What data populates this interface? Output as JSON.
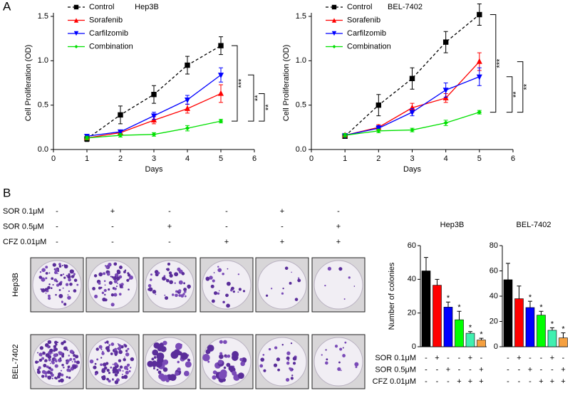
{
  "panel_labels": [
    "A",
    "B"
  ],
  "chart_data": [
    {
      "type": "line",
      "title": "Hep3B",
      "x_label": "Days",
      "y_label": "Cell Proliferation (OD)",
      "x": [
        1,
        2,
        3,
        4,
        5
      ],
      "xlim": [
        0,
        6
      ],
      "xticks": [
        0,
        1,
        2,
        3,
        4,
        5,
        6
      ],
      "ylim": [
        0,
        1.5
      ],
      "yticks": [
        {
          "value": 0,
          "label": "0.0"
        },
        0.5,
        {
          "value": 1,
          "label": "1.0"
        },
        1.5
      ],
      "legend": "upper left",
      "series": [
        {
          "name": "Control",
          "color": "#000000",
          "marker": "square",
          "dashed": true,
          "values": [
            0.12,
            0.39,
            0.62,
            0.95,
            1.17
          ],
          "errors": [
            0.03,
            0.1,
            0.1,
            0.1,
            0.1
          ]
        },
        {
          "name": "Sorafenib",
          "color": "#ff0000",
          "marker": "triangle-up",
          "dashed": false,
          "values": [
            0.13,
            0.19,
            0.33,
            0.46,
            0.63
          ],
          "errors": [
            0.02,
            0.03,
            0.04,
            0.05,
            0.1
          ]
        },
        {
          "name": "Carfilzomib",
          "color": "#0000ff",
          "marker": "triangle-down",
          "dashed": false,
          "values": [
            0.15,
            0.2,
            0.38,
            0.56,
            0.84
          ],
          "errors": [
            0.02,
            0.02,
            0.04,
            0.05,
            0.08
          ]
        },
        {
          "name": "Combination",
          "color": "#00e000",
          "marker": "diamond",
          "dashed": false,
          "values": [
            0.13,
            0.16,
            0.17,
            0.24,
            0.32
          ],
          "errors": [
            0.02,
            0.02,
            0.02,
            0.03,
            0.02
          ]
        }
      ],
      "annotations": [
        "***",
        "**",
        "**"
      ]
    },
    {
      "type": "line",
      "title": "BEL-7402",
      "x_label": "Days",
      "y_label": "Cell Proliferation (OD)",
      "x": [
        1,
        2,
        3,
        4,
        5
      ],
      "xlim": [
        0,
        6
      ],
      "xticks": [
        0,
        1,
        2,
        3,
        4,
        5,
        6
      ],
      "ylim": [
        0,
        1.5
      ],
      "yticks": [
        {
          "value": 0,
          "label": "0.0"
        },
        0.5,
        {
          "value": 1,
          "label": "1.0"
        },
        1.5
      ],
      "legend": "upper left",
      "series": [
        {
          "name": "Control",
          "color": "#000000",
          "marker": "square",
          "dashed": true,
          "values": [
            0.15,
            0.5,
            0.8,
            1.21,
            1.52
          ],
          "errors": [
            0.02,
            0.12,
            0.12,
            0.12,
            0.12
          ]
        },
        {
          "name": "Sorafenib",
          "color": "#ff0000",
          "marker": "triangle-up",
          "dashed": false,
          "values": [
            0.16,
            0.25,
            0.47,
            0.58,
            0.99
          ],
          "errors": [
            0.02,
            0.03,
            0.05,
            0.05,
            0.1
          ]
        },
        {
          "name": "Carfilzomib",
          "color": "#0000ff",
          "marker": "triangle-down",
          "dashed": false,
          "values": [
            0.16,
            0.24,
            0.42,
            0.67,
            0.82
          ],
          "errors": [
            0.02,
            0.03,
            0.04,
            0.08,
            0.1
          ]
        },
        {
          "name": "Combination",
          "color": "#00e000",
          "marker": "diamond",
          "dashed": false,
          "values": [
            0.16,
            0.21,
            0.22,
            0.3,
            0.42
          ],
          "errors": [
            0.02,
            0.02,
            0.02,
            0.03,
            0.02
          ]
        }
      ],
      "annotations": [
        "***",
        "**",
        "**"
      ]
    },
    {
      "type": "bar",
      "title": "Hep3B",
      "y_label": "Number of colonies",
      "categories": [
        null,
        null,
        null,
        null,
        null,
        null
      ],
      "values": [
        45,
        36.5,
        23.5,
        16,
        8,
        4
      ],
      "errors": [
        8,
        3.5,
        3,
        5,
        1,
        1
      ],
      "colors": [
        "#000000",
        "#ff0000",
        "#0000ff",
        "#00ff00",
        "#40f0b0",
        "#f5a040"
      ],
      "ylim": [
        0,
        60
      ],
      "yticks": [
        0,
        20,
        40,
        60
      ],
      "significance": [
        null,
        null,
        "*",
        "*",
        "*",
        "*"
      ],
      "treatment_labels": [
        "SOR 0.1μM",
        "SOR 0.5μM",
        "CFZ 0.01μM"
      ],
      "treatment_signs": [
        [
          "-",
          "+",
          "-",
          "-",
          "+",
          "-"
        ],
        [
          "-",
          "-",
          "+",
          "-",
          "-",
          "+"
        ],
        [
          "-",
          "-",
          "-",
          "+",
          "+",
          "+"
        ]
      ]
    },
    {
      "type": "bar",
      "title": "BEL-7402",
      "categories": [
        null,
        null,
        null,
        null,
        null,
        null
      ],
      "values": [
        53,
        38,
        31,
        25,
        13,
        7
      ],
      "errors": [
        13,
        10,
        5,
        3,
        2,
        4
      ],
      "colors": [
        "#000000",
        "#ff0000",
        "#0000ff",
        "#00ff00",
        "#40f0b0",
        "#f5a040"
      ],
      "ylim": [
        0,
        80
      ],
      "yticks": [
        0,
        20,
        40,
        60,
        80
      ],
      "significance": [
        null,
        null,
        "*",
        "*",
        "*",
        "*"
      ],
      "treatment_signs": [
        [
          "-",
          "+",
          "-",
          "-",
          "+",
          "-"
        ],
        [
          "-",
          "-",
          "+",
          "-",
          "-",
          "+"
        ],
        [
          "-",
          "-",
          "-",
          "+",
          "+",
          "+"
        ]
      ]
    }
  ],
  "colony_assay": {
    "treatment_labels": [
      "SOR 0.1μM",
      "SOR 0.5μM",
      "CFZ 0.01μM"
    ],
    "treatment_signs": [
      [
        "-",
        "+",
        "-",
        "-",
        "+",
        "-"
      ],
      [
        "-",
        "-",
        "+",
        "-",
        "-",
        "+"
      ],
      [
        "-",
        "-",
        "-",
        "+",
        "+",
        "+"
      ]
    ],
    "row_labels": [
      "Hep3B",
      "BEL-7402"
    ]
  }
}
